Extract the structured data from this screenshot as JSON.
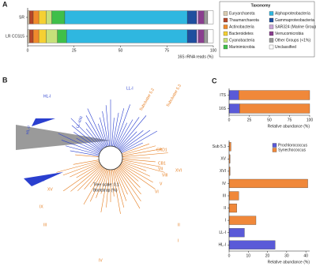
{
  "chart_data": [
    {
      "type": "stacked_hbar",
      "label": "A",
      "categories": [
        "SR",
        "LR CCS15"
      ],
      "xlabel": "16S rRNA reads (%)",
      "xlim": [
        0,
        100
      ],
      "xticks": [
        0,
        25,
        50,
        75,
        100
      ],
      "legend_title": "Taxonomy",
      "series": [
        {
          "name": "Euryarchaeota",
          "color": "#d9cbb0",
          "values": [
            1,
            1
          ]
        },
        {
          "name": "Thaumarchaeota",
          "color": "#b5462a",
          "values": [
            2,
            2
          ]
        },
        {
          "name": "Actinobacteria",
          "color": "#f08a2c",
          "values": [
            3,
            3
          ]
        },
        {
          "name": "Bacteroidetes",
          "color": "#f5d033",
          "values": [
            4,
            4
          ]
        },
        {
          "name": "Cyanobacteria",
          "color": "#c7e07a",
          "values": [
            3,
            6
          ]
        },
        {
          "name": "Marinimicrobia",
          "color": "#3fbf4a",
          "values": [
            7,
            5
          ]
        },
        {
          "name": "Alphaproteobacteria",
          "color": "#2fb7e0",
          "values": [
            66,
            65
          ]
        },
        {
          "name": "Gammaproteobacteria",
          "color": "#1f4f9f",
          "values": [
            5,
            5
          ]
        },
        {
          "name": "SAR324 (Marine Group B)",
          "color": "#c9a6d8",
          "values": [
            1,
            1
          ]
        },
        {
          "name": "Verrucomicrobia",
          "color": "#8a3f8f",
          "values": [
            3,
            3
          ]
        },
        {
          "name": "Other Groups (<1%)",
          "color": "#9a9a9a",
          "values": [
            2,
            2
          ]
        },
        {
          "name": "Unclassified",
          "color": "#ffffff",
          "values": [
            3,
            3
          ]
        }
      ]
    },
    {
      "type": "stacked_hbar",
      "label": "C",
      "categories": [
        "ITS",
        "16S"
      ],
      "xlabel": "Relative abundance (%)",
      "xlim": [
        0,
        100
      ],
      "xticks": [
        0,
        25,
        50,
        75,
        100
      ],
      "series": [
        {
          "name": "Prochlorococcus",
          "color": "#5a5ad8",
          "values": [
            12,
            13
          ]
        },
        {
          "name": "Synechococcus",
          "color": "#f0883a",
          "values": [
            88,
            87
          ]
        }
      ]
    },
    {
      "type": "stacked_hbar",
      "categories": [
        "Sub 5.3",
        "XV",
        "XVI",
        "IV",
        "III",
        "II",
        "I",
        "LL-I",
        "HL-I"
      ],
      "xlabel": "Relative abundance (%)",
      "xlim": [
        0,
        42
      ],
      "xticks": [
        0,
        10,
        20,
        30,
        40
      ],
      "series": [
        {
          "name": "Prochlorococcus",
          "color": "#5a5ad8",
          "values": [
            null,
            null,
            null,
            null,
            null,
            null,
            null,
            8,
            24
          ]
        },
        {
          "name": "Synechococcus",
          "color": "#f0883a",
          "values": [
            1,
            0.5,
            0.5,
            41,
            5,
            4,
            14,
            null,
            null
          ]
        }
      ]
    }
  ],
  "tree": {
    "label": "B",
    "clades": [
      "HL-I",
      "HL-II",
      "LL-I",
      "LL-II/III",
      "LL-IV",
      "Subcluster 5.2",
      "Subcluster 5.3",
      "CRD1",
      "CB1",
      "XVI",
      "VII",
      "VIII",
      "V",
      "VI",
      "XV",
      "IX",
      "III",
      "IV",
      "II",
      "I"
    ],
    "scale": "Tree scale: 0.1",
    "bootstrap": "Bootstrap (%)"
  }
}
